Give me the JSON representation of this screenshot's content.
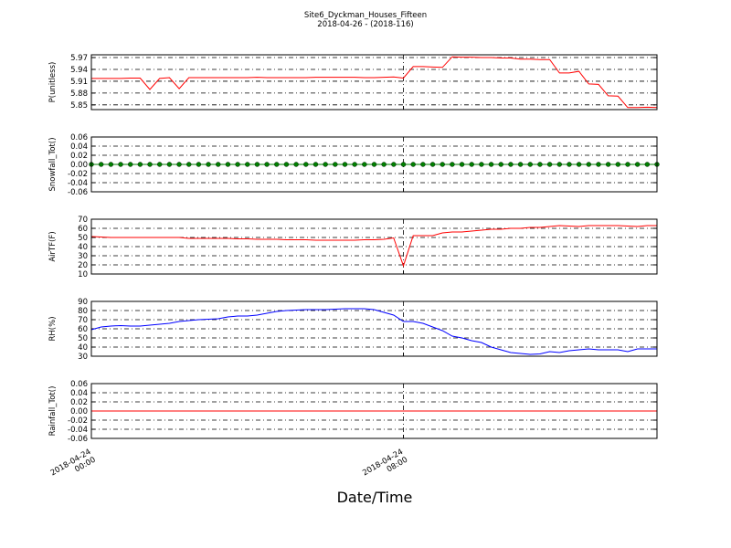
{
  "figure": {
    "title": "Site6_Dyckman_Houses_Fifteen",
    "subtitle": "2018-04-26 - (2018-116)",
    "xlabel": "Date/Time",
    "xlim": [
      "2018-04-24 00:00",
      "2018-04-24 14:30"
    ],
    "xticks": [
      {
        "value": "2018-04-24 00:00",
        "label": "2018-04-24\n00:00"
      },
      {
        "value": "2018-04-24 08:00",
        "label": "2018-04-24\n08:00"
      }
    ],
    "x": [
      "2018-04-24 00:00",
      "2018-04-24 00:15",
      "2018-04-24 00:30",
      "2018-04-24 00:45",
      "2018-04-24 01:00",
      "2018-04-24 01:15",
      "2018-04-24 01:30",
      "2018-04-24 01:45",
      "2018-04-24 02:00",
      "2018-04-24 02:15",
      "2018-04-24 02:30",
      "2018-04-24 02:45",
      "2018-04-24 03:00",
      "2018-04-24 03:15",
      "2018-04-24 03:30",
      "2018-04-24 03:45",
      "2018-04-24 04:00",
      "2018-04-24 04:15",
      "2018-04-24 04:30",
      "2018-04-24 04:45",
      "2018-04-24 05:00",
      "2018-04-24 05:15",
      "2018-04-24 05:30",
      "2018-04-24 05:45",
      "2018-04-24 06:00",
      "2018-04-24 06:15",
      "2018-04-24 06:30",
      "2018-04-24 06:45",
      "2018-04-24 07:00",
      "2018-04-24 07:15",
      "2018-04-24 07:30",
      "2018-04-24 07:45",
      "2018-04-24 08:00",
      "2018-04-24 08:15",
      "2018-04-24 08:30",
      "2018-04-24 08:45",
      "2018-04-24 09:00",
      "2018-04-24 09:15",
      "2018-04-24 09:30",
      "2018-04-24 09:45",
      "2018-04-24 10:00",
      "2018-04-24 10:15",
      "2018-04-24 10:30",
      "2018-04-24 10:45",
      "2018-04-24 11:00",
      "2018-04-24 11:15",
      "2018-04-24 11:30",
      "2018-04-24 11:45",
      "2018-04-24 12:00",
      "2018-04-24 12:15",
      "2018-04-24 12:30",
      "2018-04-24 12:45",
      "2018-04-24 13:00",
      "2018-04-24 13:15",
      "2018-04-24 13:30",
      "2018-04-24 13:45",
      "2018-04-24 14:00",
      "2018-04-24 14:15",
      "2018-04-24 14:30"
    ]
  },
  "chart_data": [
    {
      "type": "line",
      "ylabel": "P(unitless)",
      "ylim": [
        5.838,
        5.977
      ],
      "yticks": [
        5.85,
        5.88,
        5.91,
        5.94,
        5.97
      ],
      "grid": true,
      "series": [
        {
          "color": "#ff0000",
          "values": [
            5.917,
            5.917,
            5.917,
            5.917,
            5.918,
            5.918,
            5.889,
            5.917,
            5.919,
            5.891,
            5.919,
            5.919,
            5.919,
            5.919,
            5.919,
            5.919,
            5.919,
            5.92,
            5.919,
            5.919,
            5.919,
            5.919,
            5.919,
            5.92,
            5.92,
            5.92,
            5.92,
            5.92,
            5.919,
            5.919,
            5.92,
            5.921,
            5.918,
            5.947,
            5.947,
            5.946,
            5.945,
            5.972,
            5.971,
            5.971,
            5.97,
            5.97,
            5.969,
            5.969,
            5.966,
            5.966,
            5.965,
            5.965,
            5.931,
            5.931,
            5.935,
            5.903,
            5.902,
            5.873,
            5.872,
            5.843,
            5.843,
            5.844,
            5.843
          ]
        }
      ]
    },
    {
      "type": "line",
      "ylabel": "Snowfall_Tot()",
      "ylim": [
        -0.06,
        0.06
      ],
      "yticks": [
        -0.06,
        -0.04,
        -0.02,
        {
          "value": 0,
          "label": "0.00"
        },
        0.02,
        0.04,
        0.06
      ],
      "grid": true,
      "series": [
        {
          "color": "#008000",
          "marker": true,
          "values": [
            0,
            0,
            0,
            0,
            0,
            0,
            0,
            0,
            0,
            0,
            0,
            0,
            0,
            0,
            0,
            0,
            0,
            0,
            0,
            0,
            0,
            0,
            0,
            0,
            0,
            0,
            0,
            0,
            0,
            0,
            0,
            0,
            0,
            0,
            0,
            0,
            0,
            0,
            0,
            0,
            0,
            0,
            0,
            0,
            0,
            0,
            0,
            0,
            0,
            0,
            0,
            0,
            0,
            0,
            0,
            0,
            0,
            0,
            0
          ]
        }
      ]
    },
    {
      "type": "line",
      "ylabel": "AirTF(F)",
      "ylim": [
        10,
        70
      ],
      "yticks": [
        10,
        20,
        30,
        40,
        50,
        60,
        70
      ],
      "grid": true,
      "series": [
        {
          "color": "#ff0000",
          "values": [
            51,
            50.5,
            50,
            50,
            50,
            50,
            50,
            50,
            50,
            50,
            49,
            49,
            49,
            49,
            49,
            48.5,
            48.5,
            48,
            48,
            48,
            47.5,
            47.5,
            47.5,
            47,
            47,
            47,
            47,
            47,
            47.5,
            47.5,
            48,
            49.5,
            19,
            52,
            52,
            52,
            55,
            56,
            56,
            57,
            58,
            59,
            59,
            60,
            60,
            61,
            61,
            62,
            63,
            62.5,
            62,
            63,
            63,
            63,
            63,
            62.5,
            62,
            63,
            63
          ]
        }
      ]
    },
    {
      "type": "line",
      "ylabel": "RH(%)",
      "ylim": [
        30,
        90
      ],
      "yticks": [
        30,
        40,
        50,
        60,
        70,
        80,
        90
      ],
      "grid": true,
      "series": [
        {
          "color": "#0000ff",
          "values": [
            59,
            62,
            63,
            63.5,
            63,
            63,
            64,
            65,
            66,
            68,
            69,
            70,
            70.5,
            71,
            73,
            74,
            74,
            75,
            77,
            79,
            80,
            80.5,
            81,
            81,
            81,
            81.5,
            82,
            82,
            82,
            81,
            78,
            75,
            68,
            68,
            66,
            62,
            58,
            52,
            50,
            47,
            45,
            40,
            37,
            34,
            33,
            32,
            32.5,
            35,
            34,
            36,
            37,
            38,
            37,
            37,
            37,
            35,
            38,
            38,
            38
          ]
        }
      ]
    },
    {
      "type": "line",
      "ylabel": "Rainfall_Tot()",
      "ylim": [
        -0.06,
        0.06
      ],
      "yticks": [
        -0.06,
        -0.04,
        -0.02,
        {
          "value": 0,
          "label": "0.00"
        },
        0.02,
        0.04,
        0.06
      ],
      "grid": true,
      "series": [
        {
          "color": "#ff0000",
          "values": [
            0,
            0,
            0,
            0,
            0,
            0,
            0,
            0,
            0,
            0,
            0,
            0,
            0,
            0,
            0,
            0,
            0,
            0,
            0,
            0,
            0,
            0,
            0,
            0,
            0,
            0,
            0,
            0,
            0,
            0,
            0,
            0,
            0,
            0,
            0,
            0,
            0,
            0,
            0,
            0,
            0,
            0,
            0,
            0,
            0,
            0,
            0,
            0,
            0,
            0,
            0,
            0,
            0,
            0,
            0,
            0,
            0,
            0,
            0
          ]
        }
      ]
    }
  ]
}
